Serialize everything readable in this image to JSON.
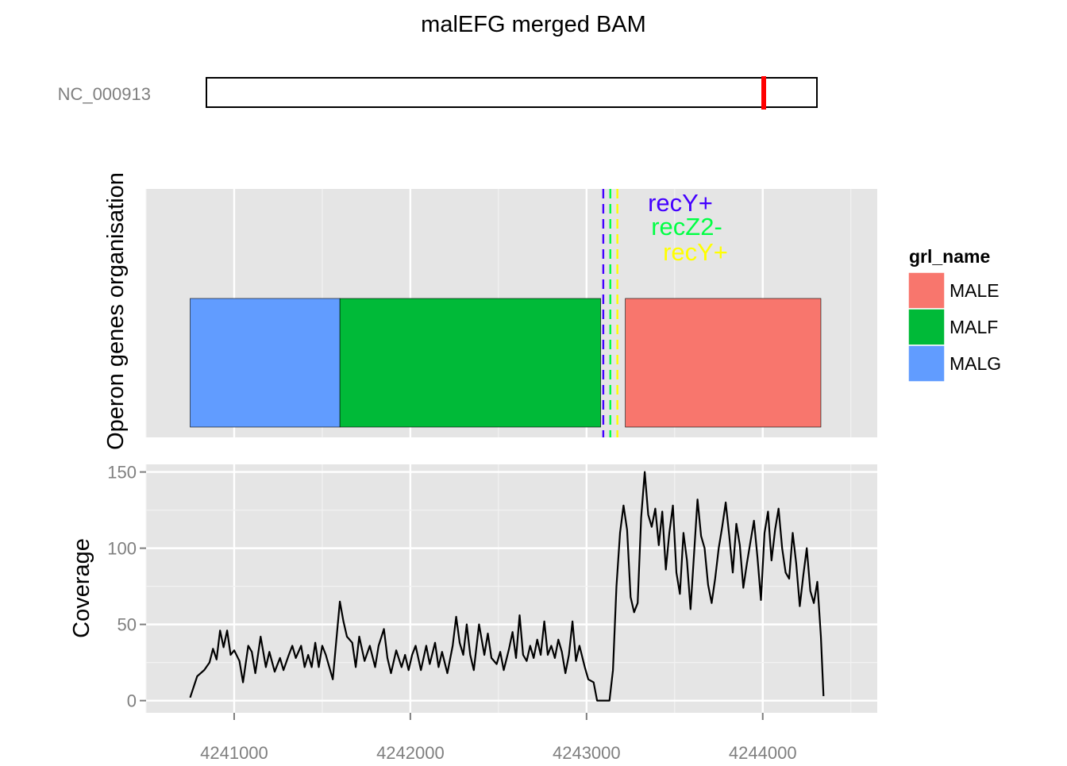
{
  "title": "malEFG merged BAM",
  "ideogram": {
    "chromosome_label": "NC_000913",
    "highlight_color": "#ff0000"
  },
  "chart_data": [
    {
      "type": "gene-track",
      "ylabel": "Operon genes organisation",
      "xlim": [
        4240500,
        4244650
      ],
      "genes": [
        {
          "name": "MALG",
          "start": 4240750,
          "end": 4241600,
          "color": "#619cff"
        },
        {
          "name": "MALF",
          "start": 4241600,
          "end": 4243080,
          "color": "#00ba38"
        },
        {
          "name": "MALE",
          "start": 4243220,
          "end": 4244330,
          "color": "#f8766d"
        }
      ],
      "markers": [
        {
          "label": "recY+",
          "position": 4243095,
          "color": "#4400ff"
        },
        {
          "label": "recZ2-",
          "position": 4243135,
          "color": "#00ff44"
        },
        {
          "label": "recY+",
          "position": 4243175,
          "color": "#ffff00"
        }
      ],
      "legend": {
        "title": "grl_name",
        "placement": "right",
        "entries": [
          {
            "label": "MALE",
            "color": "#f8766d"
          },
          {
            "label": "MALF",
            "color": "#00ba38"
          },
          {
            "label": "MALG",
            "color": "#619cff"
          }
        ]
      }
    },
    {
      "type": "line",
      "ylabel": "Coverage",
      "xlim": [
        4240500,
        4244650
      ],
      "ylim": [
        -8,
        155
      ],
      "yticks": [
        0,
        50,
        100,
        150
      ],
      "xticks": [
        4241000,
        4242000,
        4243000,
        4244000
      ],
      "series": [
        {
          "color": "#000000",
          "points": [
            [
              4240750,
              2
            ],
            [
              4240790,
              16
            ],
            [
              4240830,
              20
            ],
            [
              4240860,
              25
            ],
            [
              4240880,
              34
            ],
            [
              4240900,
              27
            ],
            [
              4240920,
              46
            ],
            [
              4240940,
              35
            ],
            [
              4240960,
              46
            ],
            [
              4240980,
              30
            ],
            [
              4241000,
              33
            ],
            [
              4241030,
              26
            ],
            [
              4241050,
              12
            ],
            [
              4241080,
              36
            ],
            [
              4241100,
              32
            ],
            [
              4241120,
              18
            ],
            [
              4241150,
              42
            ],
            [
              4241180,
              22
            ],
            [
              4241200,
              32
            ],
            [
              4241230,
              19
            ],
            [
              4241260,
              28
            ],
            [
              4241280,
              20
            ],
            [
              4241310,
              30
            ],
            [
              4241330,
              36
            ],
            [
              4241350,
              28
            ],
            [
              4241380,
              36
            ],
            [
              4241400,
              22
            ],
            [
              4241420,
              30
            ],
            [
              4241440,
              22
            ],
            [
              4241460,
              38
            ],
            [
              4241480,
              22
            ],
            [
              4241500,
              36
            ],
            [
              4241520,
              30
            ],
            [
              4241540,
              22
            ],
            [
              4241560,
              14
            ],
            [
              4241580,
              40
            ],
            [
              4241600,
              65
            ],
            [
              4241620,
              52
            ],
            [
              4241640,
              42
            ],
            [
              4241670,
              38
            ],
            [
              4241690,
              22
            ],
            [
              4241710,
              42
            ],
            [
              4241740,
              26
            ],
            [
              4241770,
              36
            ],
            [
              4241800,
              22
            ],
            [
              4241820,
              36
            ],
            [
              4241850,
              47
            ],
            [
              4241870,
              28
            ],
            [
              4241890,
              18
            ],
            [
              4241920,
              33
            ],
            [
              4241950,
              22
            ],
            [
              4241970,
              30
            ],
            [
              4241990,
              20
            ],
            [
              4242010,
              30
            ],
            [
              4242030,
              36
            ],
            [
              4242060,
              20
            ],
            [
              4242090,
              36
            ],
            [
              4242110,
              24
            ],
            [
              4242140,
              38
            ],
            [
              4242160,
              22
            ],
            [
              4242180,
              32
            ],
            [
              4242210,
              18
            ],
            [
              4242240,
              36
            ],
            [
              4242260,
              55
            ],
            [
              4242280,
              38
            ],
            [
              4242300,
              30
            ],
            [
              4242320,
              50
            ],
            [
              4242340,
              30
            ],
            [
              4242360,
              20
            ],
            [
              4242390,
              50
            ],
            [
              4242420,
              30
            ],
            [
              4242440,
              44
            ],
            [
              4242460,
              28
            ],
            [
              4242490,
              24
            ],
            [
              4242510,
              32
            ],
            [
              4242530,
              20
            ],
            [
              4242560,
              34
            ],
            [
              4242580,
              45
            ],
            [
              4242600,
              28
            ],
            [
              4242620,
              56
            ],
            [
              4242640,
              30
            ],
            [
              4242660,
              26
            ],
            [
              4242680,
              36
            ],
            [
              4242700,
              28
            ],
            [
              4242720,
              40
            ],
            [
              4242740,
              30
            ],
            [
              4242760,
              52
            ],
            [
              4242780,
              30
            ],
            [
              4242800,
              36
            ],
            [
              4242820,
              28
            ],
            [
              4242840,
              40
            ],
            [
              4242860,
              32
            ],
            [
              4242880,
              18
            ],
            [
              4242900,
              30
            ],
            [
              4242920,
              52
            ],
            [
              4242940,
              26
            ],
            [
              4242960,
              36
            ],
            [
              4242990,
              22
            ],
            [
              4243010,
              14
            ],
            [
              4243040,
              12
            ],
            [
              4243060,
              0
            ],
            [
              4243080,
              0
            ],
            [
              4243110,
              0
            ],
            [
              4243130,
              0
            ],
            [
              4243150,
              20
            ],
            [
              4243170,
              75
            ],
            [
              4243190,
              110
            ],
            [
              4243210,
              128
            ],
            [
              4243230,
              112
            ],
            [
              4243250,
              68
            ],
            [
              4243270,
              58
            ],
            [
              4243290,
              64
            ],
            [
              4243310,
              120
            ],
            [
              4243330,
              150
            ],
            [
              4243350,
              122
            ],
            [
              4243370,
              114
            ],
            [
              4243390,
              126
            ],
            [
              4243410,
              102
            ],
            [
              4243430,
              124
            ],
            [
              4243450,
              86
            ],
            [
              4243470,
              110
            ],
            [
              4243490,
              128
            ],
            [
              4243510,
              84
            ],
            [
              4243530,
              70
            ],
            [
              4243550,
              110
            ],
            [
              4243570,
              92
            ],
            [
              4243590,
              60
            ],
            [
              4243610,
              96
            ],
            [
              4243630,
              132
            ],
            [
              4243650,
              108
            ],
            [
              4243670,
              100
            ],
            [
              4243690,
              76
            ],
            [
              4243710,
              64
            ],
            [
              4243730,
              80
            ],
            [
              4243750,
              100
            ],
            [
              4243770,
              114
            ],
            [
              4243790,
              130
            ],
            [
              4243810,
              108
            ],
            [
              4243830,
              84
            ],
            [
              4243850,
              116
            ],
            [
              4243870,
              102
            ],
            [
              4243890,
              74
            ],
            [
              4243910,
              90
            ],
            [
              4243930,
              104
            ],
            [
              4243950,
              118
            ],
            [
              4243970,
              94
            ],
            [
              4243990,
              66
            ],
            [
              4244010,
              110
            ],
            [
              4244030,
              124
            ],
            [
              4244050,
              92
            ],
            [
              4244070,
              112
            ],
            [
              4244090,
              126
            ],
            [
              4244110,
              100
            ],
            [
              4244130,
              84
            ],
            [
              4244150,
              80
            ],
            [
              4244170,
              110
            ],
            [
              4244190,
              90
            ],
            [
              4244210,
              62
            ],
            [
              4244230,
              82
            ],
            [
              4244250,
              100
            ],
            [
              4244270,
              72
            ],
            [
              4244290,
              64
            ],
            [
              4244310,
              78
            ],
            [
              4244330,
              42
            ],
            [
              4244345,
              3
            ]
          ]
        }
      ]
    }
  ]
}
